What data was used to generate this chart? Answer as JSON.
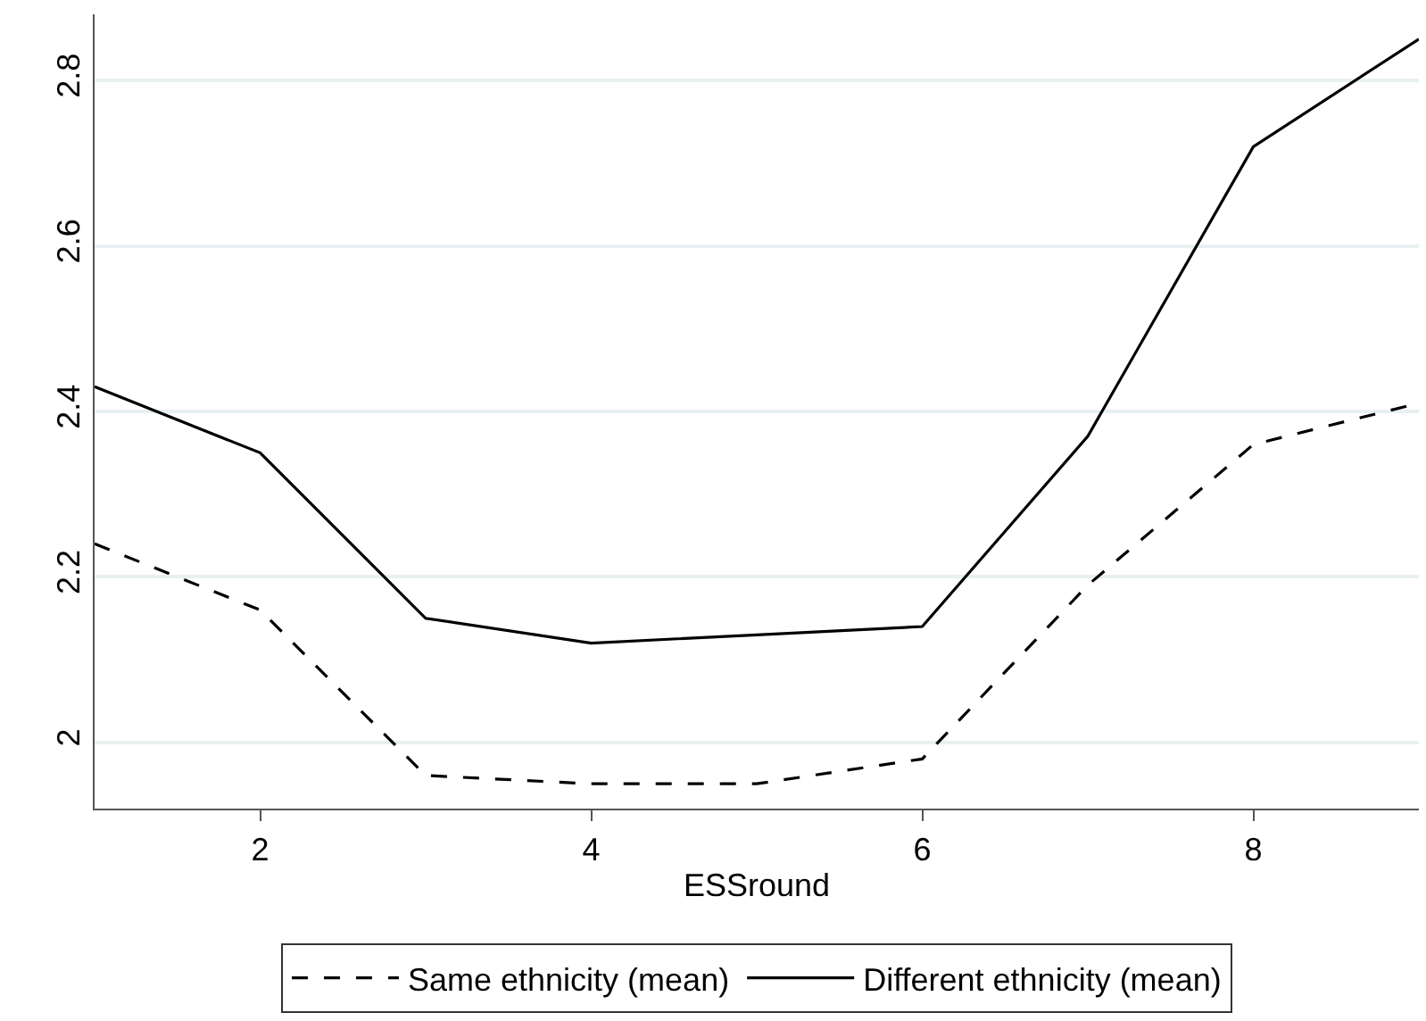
{
  "chart_data": {
    "type": "line",
    "xlabel": "ESSround",
    "x": [
      1,
      2,
      3,
      4,
      5,
      6,
      7,
      8,
      9
    ],
    "series": [
      {
        "name": "Same ethnicity (mean)",
        "color": "#000000",
        "line_style": "dashed",
        "values": [
          2.24,
          2.16,
          1.96,
          1.95,
          1.95,
          1.98,
          2.19,
          2.36,
          2.41
        ]
      },
      {
        "name": "Different ethnicity (mean)",
        "color": "#000000",
        "line_style": "solid",
        "values": [
          2.43,
          2.35,
          2.15,
          2.12,
          2.13,
          2.14,
          2.37,
          2.72,
          2.85
        ]
      }
    ],
    "xlim": [
      1,
      9
    ],
    "xticks": [
      2,
      4,
      6,
      8
    ],
    "ylim": [
      1.92,
      2.88
    ],
    "yticks": [
      2,
      2.2,
      2.4,
      2.6,
      2.8
    ],
    "grid": "y",
    "legend": "bottom",
    "marker": "none"
  }
}
